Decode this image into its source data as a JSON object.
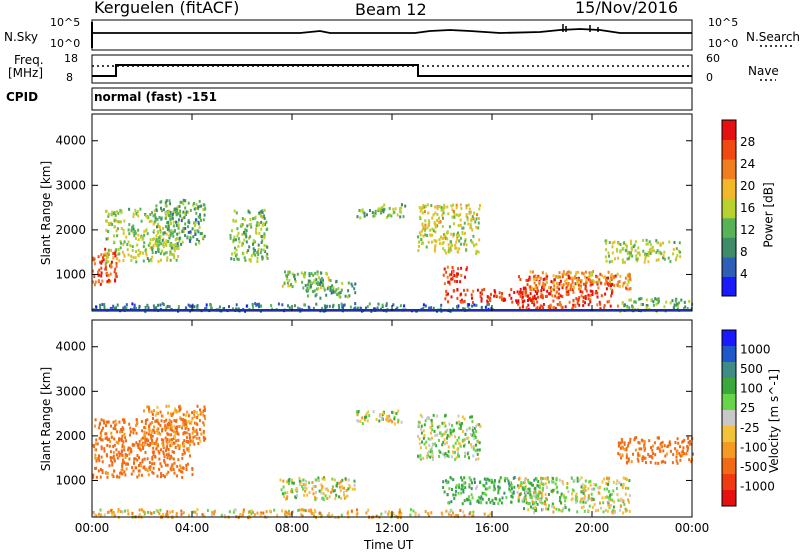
{
  "header": {
    "station": "Kerguelen (fitACF)",
    "beam": "Beam 12",
    "date": "15/Nov/2016"
  },
  "strip_labels": {
    "nsky": "N.Sky",
    "nsky_top": "10^5",
    "nsky_bottom": "10^0",
    "nsearch": "N.Search",
    "nsearch_top": "10^5",
    "nsearch_bottom": "10^0",
    "freq_line1": "Freq.",
    "freq_line2": "[MHz]",
    "freq_top": "18",
    "freq_bottom": "8",
    "nave": "Nave",
    "nave_top": "60",
    "nave_bottom": "0",
    "cpid": "CPID",
    "mode": "normal (fast) -151"
  },
  "colors": {
    "power_scale": [
      "#1a1aff",
      "#2e5fb8",
      "#3e8c6a",
      "#58b357",
      "#b7d12f",
      "#f2b82a",
      "#f07d1e",
      "#f04a12",
      "#e61010"
    ],
    "velocity_scale": [
      "#1a1aff",
      "#1f58c8",
      "#3f8c86",
      "#3aa83a",
      "#66d54a",
      "#c8c8c8",
      "#f2c23a",
      "#f29a22",
      "#f26a14",
      "#f03a10",
      "#e61010"
    ]
  },
  "chart_data": [
    {
      "type": "heatmap",
      "title": "Power",
      "ylabel": "Slant Range [km]",
      "xlabel": "Time UT",
      "x_ticks": [
        "00:00",
        "04:00",
        "08:00",
        "12:00",
        "16:00",
        "20:00",
        "00:00"
      ],
      "y_ticks": [
        1000,
        2000,
        3000,
        4000
      ],
      "ylim": [
        180,
        4600
      ],
      "colorbar": {
        "label": "Power [dB]",
        "ticks": [
          "4",
          "8",
          "12",
          "16",
          "20",
          "24",
          "28"
        ],
        "range": [
          0,
          30
        ]
      },
      "regions": [
        {
          "t0": 0.0,
          "t1": 1.0,
          "r0": 800,
          "r1": 1600,
          "level": 26
        },
        {
          "t0": 0.5,
          "t1": 3.5,
          "r0": 1300,
          "r1": 2500,
          "level": 14
        },
        {
          "t0": 2.5,
          "t1": 4.5,
          "r0": 1700,
          "r1": 2700,
          "level": 10
        },
        {
          "t0": 5.5,
          "t1": 7.0,
          "r0": 1300,
          "r1": 2500,
          "level": 12
        },
        {
          "t0": 7.5,
          "t1": 9.5,
          "r0": 700,
          "r1": 1100,
          "level": 13
        },
        {
          "t0": 8.5,
          "t1": 10.5,
          "r0": 500,
          "r1": 900,
          "level": 9
        },
        {
          "t0": 10.5,
          "t1": 12.5,
          "r0": 2300,
          "r1": 2600,
          "level": 12
        },
        {
          "t0": 13.0,
          "t1": 15.5,
          "r0": 1500,
          "r1": 2600,
          "level": 16
        },
        {
          "t0": 14.0,
          "t1": 15.0,
          "r0": 800,
          "r1": 1200,
          "level": 28
        },
        {
          "t0": 14.0,
          "t1": 18.0,
          "r0": 400,
          "r1": 700,
          "level": 28
        },
        {
          "t0": 17.0,
          "t1": 21.0,
          "r0": 250,
          "r1": 1000,
          "level": 27
        },
        {
          "t0": 17.5,
          "t1": 21.5,
          "r0": 700,
          "r1": 1100,
          "level": 20
        },
        {
          "t0": 20.5,
          "t1": 23.5,
          "r0": 1300,
          "r1": 1800,
          "level": 14
        },
        {
          "t0": 21.0,
          "t1": 24.0,
          "r0": 200,
          "r1": 500,
          "level": 11
        },
        {
          "t0": 0.0,
          "t1": 16.0,
          "r0": 200,
          "r1": 380,
          "level": 6
        }
      ]
    },
    {
      "type": "heatmap",
      "title": "Velocity",
      "ylabel": "Slant Range [km]",
      "xlabel": "Time UT",
      "x_ticks": [
        "00:00",
        "04:00",
        "08:00",
        "12:00",
        "16:00",
        "20:00",
        "00:00"
      ],
      "y_ticks": [
        1000,
        2000,
        3000,
        4000
      ],
      "ylim": [
        180,
        4600
      ],
      "colorbar": {
        "label": "Velocity [m s^-1]",
        "ticks": [
          "1000",
          "500",
          "100",
          "25",
          "-25",
          "-100",
          "-500",
          "-1000"
        ]
      },
      "regions": [
        {
          "t0": 0.0,
          "t1": 4.0,
          "r0": 1100,
          "r1": 2400,
          "level": "-300"
        },
        {
          "t0": 2.0,
          "t1": 4.5,
          "r0": 1800,
          "r1": 2700,
          "level": "-200"
        },
        {
          "t0": 7.5,
          "t1": 10.5,
          "r0": 600,
          "r1": 1100,
          "level": "0"
        },
        {
          "t0": 10.5,
          "t1": 12.5,
          "r0": 2300,
          "r1": 2600,
          "level": "0"
        },
        {
          "t0": 13.0,
          "t1": 15.5,
          "r0": 1500,
          "r1": 2500,
          "level": "50"
        },
        {
          "t0": 14.0,
          "t1": 18.0,
          "r0": 500,
          "r1": 1100,
          "level": "150"
        },
        {
          "t0": 17.0,
          "t1": 21.5,
          "r0": 300,
          "r1": 1100,
          "level": "0"
        },
        {
          "t0": 21.0,
          "t1": 24.0,
          "r0": 1400,
          "r1": 2000,
          "level": "-300"
        },
        {
          "t0": 0.0,
          "t1": 16.0,
          "r0": 200,
          "r1": 380,
          "level": "-80"
        }
      ]
    }
  ]
}
